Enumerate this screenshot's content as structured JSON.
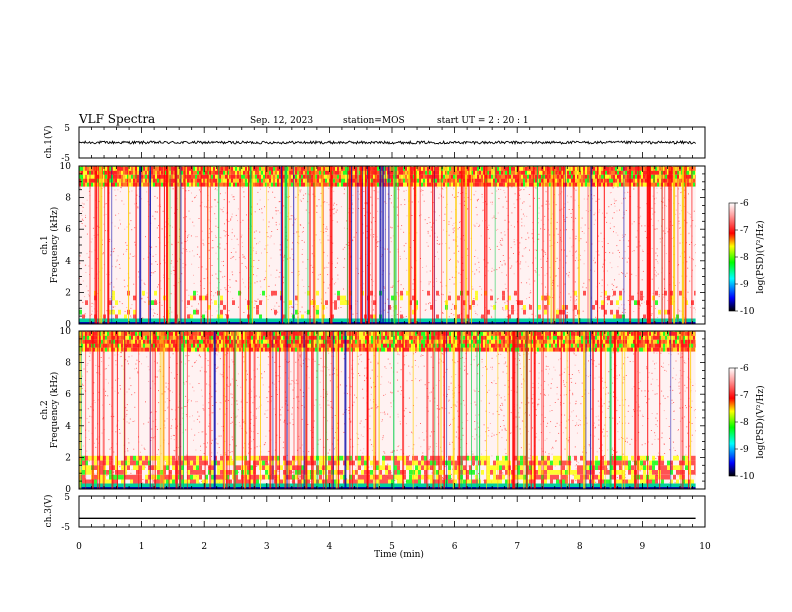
{
  "header": {
    "title": "VLF Spectra",
    "date": "Sep. 12, 2023",
    "station": "station=MOS",
    "start_ut": "start  UT =   2 : 20 : 1"
  },
  "chart_data": [
    {
      "type": "line",
      "panel": "ch1-waveform",
      "ylabel": "ch.1(V)",
      "ylim": [
        -5,
        5
      ],
      "y_ticks": [
        "5",
        "-5"
      ],
      "x_range": [
        0,
        9.85
      ],
      "level": 0.0,
      "noise_amplitude": 0.9
    },
    {
      "type": "heatmap",
      "panel": "ch1-spectrogram",
      "ylabel_channel": "ch.1",
      "ylabel": "Frequency (kHz)",
      "ylim": [
        0,
        10
      ],
      "y_ticks": [
        "0",
        "2",
        "4",
        "6",
        "8",
        "10"
      ],
      "x_range": [
        0,
        9.85
      ],
      "colorbar": {
        "label": "log(PSD)(V²/Hz)",
        "range": [
          -10,
          -6
        ],
        "ticks": [
          "-6",
          "-7",
          "-8",
          "-9",
          "-10"
        ]
      }
    },
    {
      "type": "heatmap",
      "panel": "ch2-spectrogram",
      "ylabel_channel": "ch.2",
      "ylabel": "Frequency (kHz)",
      "ylim": [
        0,
        10
      ],
      "y_ticks": [
        "0",
        "2",
        "4",
        "6",
        "8",
        "10"
      ],
      "x_range": [
        0,
        9.85
      ],
      "colorbar": {
        "label": "log(PSD)(V²/Hz)",
        "range": [
          -10,
          -6
        ],
        "ticks": [
          "-6",
          "-7",
          "-8",
          "-9",
          "-10"
        ]
      }
    },
    {
      "type": "line",
      "panel": "ch3-waveform",
      "ylabel": "ch.3(V)",
      "ylim": [
        -5,
        5
      ],
      "y_ticks": [
        "5",
        "-5"
      ],
      "x_range": [
        0,
        9.85
      ],
      "level": -2.2,
      "noise_amplitude": 0.0
    }
  ],
  "x_axis": {
    "label": "Time (min)",
    "range": [
      0,
      10
    ],
    "ticks": [
      "0",
      "1",
      "2",
      "3",
      "4",
      "5",
      "6",
      "7",
      "8",
      "9",
      "10"
    ]
  },
  "colors": {
    "colormap": [
      "#000000",
      "#0000ff",
      "#00ffff",
      "#00ff00",
      "#ffff00",
      "#ff0000",
      "#ffffff"
    ],
    "trace": "#000000"
  }
}
